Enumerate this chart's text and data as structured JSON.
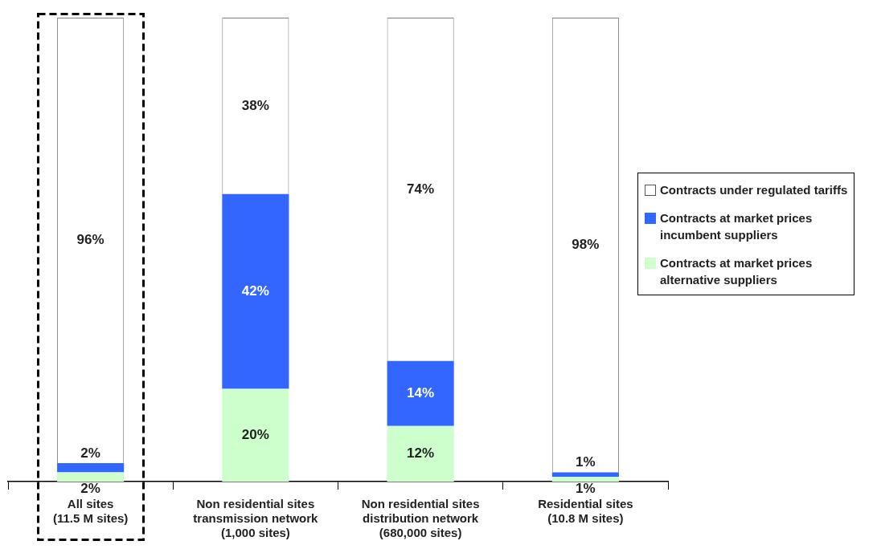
{
  "chart_data": {
    "type": "bar",
    "stacked": true,
    "categories": [
      "All sites\n(11.5 M sites)",
      "Non residential sites\ntransmission network\n(1,000 sites)",
      "Non residential sites\ndistribution network\n(680,000 sites)",
      "Residential sites\n(10.8 M sites)"
    ],
    "series": [
      {
        "name": "Contracts at market prices\nalternative suppliers",
        "color": "#ccffcc",
        "values": [
          2,
          20,
          12,
          1
        ],
        "value_labels": [
          "2%",
          "20%",
          "12%",
          "1%"
        ]
      },
      {
        "name": "Contracts at market prices\nincumbent suppliers",
        "color": "#3366ff",
        "values": [
          2,
          42,
          14,
          1
        ],
        "value_labels": [
          "2%",
          "42%",
          "14%",
          "1%"
        ]
      },
      {
        "name": "Contracts under regulated tariffs",
        "color": "#ffffff",
        "values": [
          96,
          38,
          74,
          98
        ],
        "value_labels": [
          "96%",
          "38%",
          "74%",
          "98%"
        ]
      }
    ],
    "legend": "right",
    "tick_labels": "x",
    "grid": false
  }
}
